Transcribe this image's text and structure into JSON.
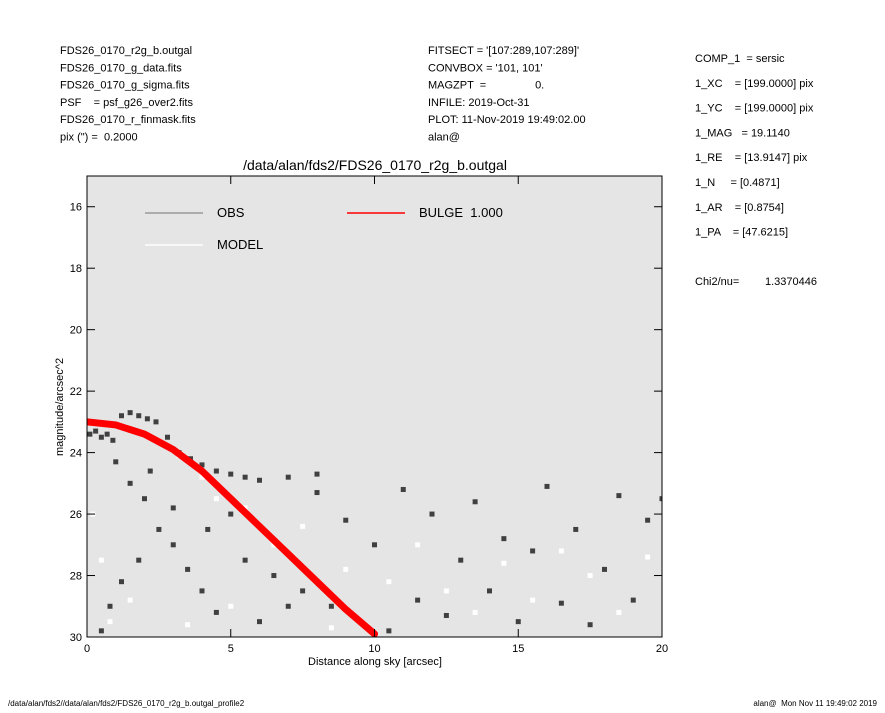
{
  "header": {
    "left": [
      "FDS26_0170_r2g_b.outgal",
      "FDS26_0170_g_data.fits",
      "FDS26_0170_g_sigma.fits",
      "PSF    = psf_g26_over2.fits",
      "FDS26_0170_r_finmask.fits",
      "pix (\") =  0.2000"
    ],
    "middle": [
      "FITSECT = '[107:289,107:289]'",
      "CONVBOX = '101, 101'",
      "MAGZPT  =                0.",
      "INFILE: 2019-Oct-31",
      "PLOT: 11-Nov-2019 19:49:02.00",
      "alan@"
    ],
    "params": [
      "COMP_1  = sersic",
      "1_XC    = [199.0000] pix",
      "1_YC    = [199.0000] pix",
      "1_MAG   = 19.1140",
      "1_RE    = [13.9147] pix",
      "1_N     = [0.4871]",
      "1_AR    = [0.8754]",
      "1_PA    = [47.6215]"
    ],
    "chi2_label": "Chi2/nu=",
    "chi2_value": "1.3370446"
  },
  "footer": {
    "left": "/data/alan/fds2//data/alan/fds2/FDS26_0170_r2g_b.outgal_profile2",
    "right": "alan@  Mon Nov 11 19:49:02 2019"
  },
  "chart_data": {
    "type": "scatter",
    "title": "/data/alan/fds2/FDS26_0170_r2g_b.outgal",
    "x_label": "Distance along sky [arcsec]",
    "y_label": "magnitude/arcsec^2",
    "xlim": [
      0,
      20
    ],
    "ylim": [
      15,
      30
    ],
    "y_inverted": true,
    "xticks": [
      0,
      5,
      10,
      15,
      20
    ],
    "yticks": [
      16,
      18,
      20,
      22,
      24,
      26,
      28,
      30
    ],
    "background": "#e5e5e5",
    "series": [
      {
        "name": "OBS",
        "color": "#404040",
        "legend_color": "#999999",
        "mark": "point",
        "x": [
          0.1,
          0.3,
          0.5,
          0.7,
          0.9,
          1.2,
          1.5,
          1.8,
          2.1,
          2.4,
          2.8,
          3.2,
          3.6,
          4.0,
          4.5,
          5.0,
          5.5,
          6.0,
          7.0,
          8.0,
          1.0,
          1.5,
          2.0,
          2.5,
          3.0,
          3.5,
          4.0,
          4.5,
          2.2,
          3.0,
          4.2,
          5.5,
          6.5,
          7.5,
          8.5,
          9.5,
          10.5,
          11.0,
          12.0,
          13.0,
          14.0,
          15.0,
          16.0,
          17.0,
          18.0,
          19.0,
          20.0,
          11.5,
          12.5,
          13.5,
          14.5,
          15.5,
          16.5,
          17.5,
          18.5,
          19.5,
          6.0,
          7.0,
          8.0,
          9.0,
          10.0,
          5.0,
          1.8,
          1.2,
          0.8,
          0.5
        ],
        "values": [
          23.4,
          23.3,
          23.5,
          23.4,
          23.6,
          22.8,
          22.7,
          22.8,
          22.9,
          23.0,
          23.5,
          24.0,
          24.2,
          24.4,
          24.6,
          24.7,
          24.8,
          24.9,
          24.8,
          24.7,
          24.3,
          25.0,
          25.5,
          26.5,
          27.0,
          27.8,
          28.5,
          29.2,
          24.6,
          25.8,
          26.5,
          27.5,
          28.0,
          28.5,
          29.0,
          29.5,
          29.8,
          25.2,
          26.0,
          27.5,
          28.5,
          29.5,
          25.1,
          26.5,
          27.8,
          28.8,
          25.5,
          28.8,
          29.3,
          25.6,
          26.8,
          27.2,
          28.9,
          29.6,
          25.4,
          26.2,
          29.5,
          29.0,
          25.3,
          26.2,
          27.0,
          26.0,
          27.5,
          28.2,
          29.0,
          29.8
        ]
      },
      {
        "name": "MODEL",
        "color": "#ffffff",
        "legend_color": "#ffffff",
        "mark": "point",
        "x": [
          0.2,
          0.5,
          0.8,
          1.5,
          3.5,
          5.0,
          6.5,
          7.5,
          9.0,
          10.5,
          11.5,
          12.5,
          13.5,
          14.5,
          15.5,
          16.5,
          17.5,
          18.5,
          19.5,
          8.5,
          4.5,
          5.5,
          3.2,
          4.0
        ],
        "values": [
          26.0,
          27.5,
          29.5,
          28.8,
          29.6,
          29.0,
          27.0,
          26.4,
          27.8,
          28.2,
          27.0,
          28.5,
          29.2,
          27.6,
          28.8,
          27.2,
          28.0,
          29.2,
          27.4,
          29.7,
          25.5,
          25.8,
          24.1,
          24.8
        ]
      },
      {
        "name": "BULGE  1.000",
        "color": "#ff0000",
        "legend_color": "#ff0000",
        "mark": "line",
        "x": [
          0,
          1,
          2,
          3,
          4,
          5,
          6,
          7,
          8,
          9,
          10
        ],
        "values": [
          23.0,
          23.1,
          23.4,
          23.9,
          24.6,
          25.5,
          26.4,
          27.3,
          28.2,
          29.1,
          29.9
        ]
      }
    ]
  }
}
